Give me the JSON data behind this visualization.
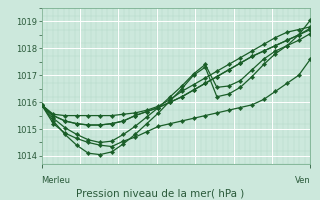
{
  "title": "Pression niveau de la mer( hPa )",
  "xlabel_left": "Merleu",
  "xlabel_right": "Ven",
  "ylim": [
    1013.7,
    1019.5
  ],
  "yticks": [
    1014,
    1015,
    1016,
    1017,
    1018,
    1019
  ],
  "bg_color": "#cce8dc",
  "grid_color_major": "#b0d8c8",
  "grid_color_white": "#ffffff",
  "line_color": "#1a5e28",
  "series": [
    [
      1015.9,
      1015.55,
      1015.5,
      1015.5,
      1015.5,
      1015.5,
      1015.5,
      1015.55,
      1015.6,
      1015.7,
      1015.85,
      1016.1,
      1016.4,
      1016.65,
      1016.9,
      1017.15,
      1017.4,
      1017.65,
      1017.9,
      1018.15,
      1018.4,
      1018.6,
      1018.7,
      1018.8
    ],
    [
      1015.9,
      1015.2,
      1014.85,
      1014.65,
      1014.5,
      1014.4,
      1014.35,
      1014.55,
      1014.7,
      1014.9,
      1015.1,
      1015.2,
      1015.3,
      1015.4,
      1015.5,
      1015.6,
      1015.7,
      1015.8,
      1015.9,
      1016.1,
      1016.4,
      1016.7,
      1017.0,
      1017.6
    ],
    [
      1015.9,
      1015.5,
      1015.3,
      1015.2,
      1015.15,
      1015.15,
      1015.2,
      1015.3,
      1015.5,
      1015.65,
      1015.8,
      1016.0,
      1016.2,
      1016.45,
      1016.7,
      1016.95,
      1017.2,
      1017.45,
      1017.7,
      1017.9,
      1018.1,
      1018.3,
      1018.5,
      1018.7
    ],
    [
      1015.9,
      1015.5,
      1015.3,
      1015.2,
      1015.15,
      1015.15,
      1015.2,
      1015.3,
      1015.5,
      1015.65,
      1015.8,
      1016.0,
      1016.2,
      1016.45,
      1016.7,
      1016.95,
      1017.2,
      1017.45,
      1017.7,
      1017.9,
      1018.1,
      1018.3,
      1018.5,
      1018.75
    ],
    [
      1015.9,
      1015.4,
      1015.05,
      1014.8,
      1014.6,
      1014.5,
      1014.55,
      1014.8,
      1015.1,
      1015.45,
      1015.8,
      1016.2,
      1016.6,
      1017.05,
      1017.4,
      1016.55,
      1016.6,
      1016.8,
      1017.2,
      1017.6,
      1017.9,
      1018.1,
      1018.3,
      1018.55
    ],
    [
      1015.9,
      1015.3,
      1014.8,
      1014.4,
      1014.1,
      1014.05,
      1014.15,
      1014.45,
      1014.8,
      1015.2,
      1015.6,
      1016.05,
      1016.5,
      1017.0,
      1017.3,
      1016.2,
      1016.3,
      1016.55,
      1016.95,
      1017.4,
      1017.8,
      1018.1,
      1018.5,
      1019.05
    ]
  ]
}
